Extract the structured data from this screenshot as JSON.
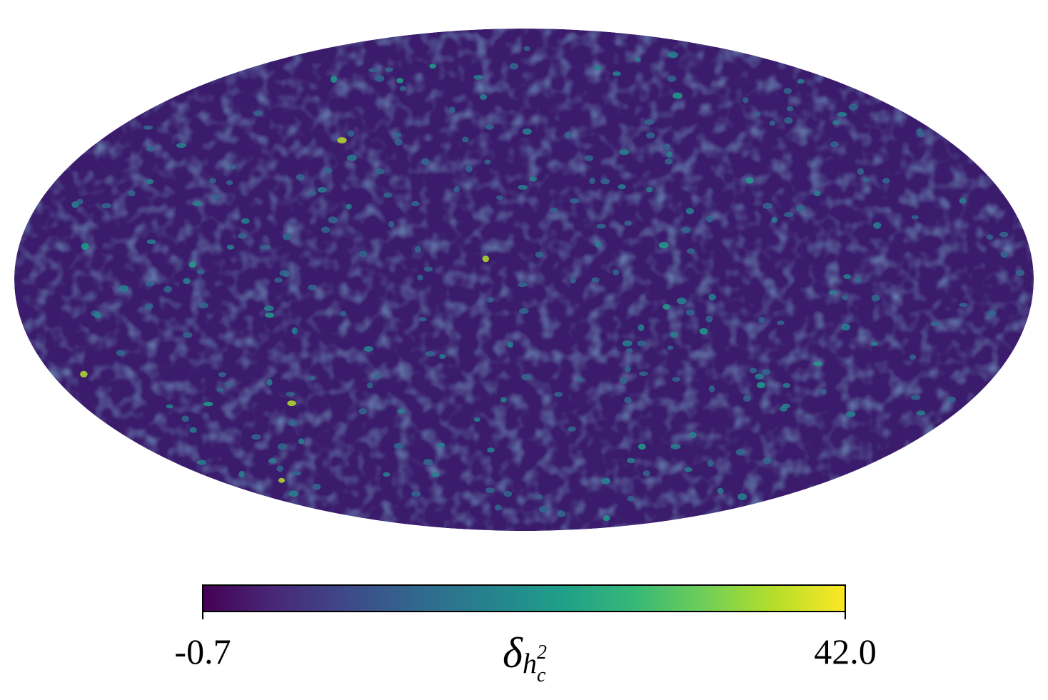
{
  "chart_data": {
    "type": "skymap",
    "projection": "mollweide",
    "cmap": "viridis",
    "clim": [
      -0.7,
      42.0
    ],
    "cticks": [
      -0.7,
      {
        "value": 42,
        "label": "42.0"
      }
    ],
    "colorbar_label": {
      "symbol": "δ",
      "subscript": "h",
      "subscript_sup": "2",
      "subscript_sub": "c"
    }
  }
}
